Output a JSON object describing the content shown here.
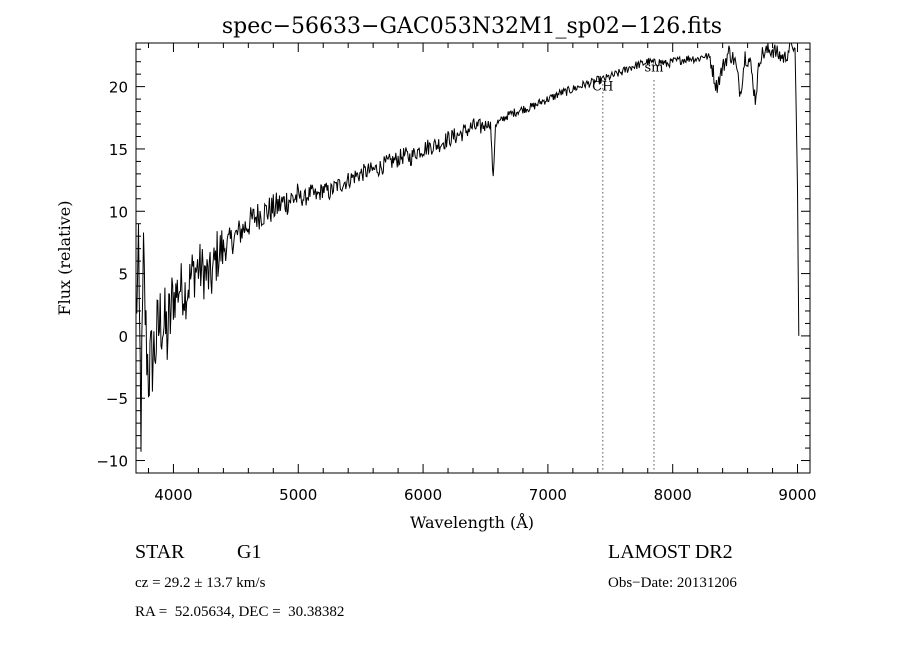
{
  "chart_data": {
    "type": "line",
    "title": "spec−56633−GAC053N32M1_sp02−126.fits",
    "xlabel": "Wavelength (Å)",
    "ylabel": "Flux (relative)",
    "xlim": [
      3700,
      9100
    ],
    "ylim": [
      -11,
      23.5
    ],
    "xticks": [
      4000,
      5000,
      6000,
      7000,
      8000,
      9000
    ],
    "yticks": [
      -10,
      -5,
      0,
      5,
      10,
      15,
      20
    ],
    "ytick_labels": [
      "−10",
      "−5",
      "0",
      "5",
      "10",
      "15",
      "20"
    ],
    "grid": false,
    "series": [
      {
        "x": [
          3700,
          3720,
          3740,
          3760,
          3780,
          3800,
          3850,
          3900,
          3950,
          4000,
          4050,
          4100,
          4150,
          4200,
          4250,
          4300,
          4350,
          4400,
          4450,
          4500,
          4550,
          4600,
          4650,
          4700,
          4750,
          4800,
          4850,
          4900,
          4950,
          5000,
          5050,
          5100,
          5150,
          5200,
          5250,
          5300,
          5350,
          5400,
          5450,
          5500,
          5550,
          5600,
          5650,
          5700,
          5750,
          5800,
          5850,
          5900,
          5950,
          6000,
          6050,
          6100,
          6150,
          6200,
          6250,
          6300,
          6350,
          6400,
          6450,
          6500,
          6540,
          6562,
          6580,
          6620,
          6650,
          6700,
          6750,
          6800,
          6850,
          6900,
          6950,
          7000,
          7050,
          7100,
          7150,
          7200,
          7250,
          7300,
          7350,
          7400,
          7450,
          7500,
          7550,
          7600,
          7650,
          7700,
          7750,
          7800,
          7850,
          7900,
          7950,
          8000,
          8050,
          8100,
          8150,
          8200,
          8250,
          8300,
          8350,
          8400,
          8450,
          8500,
          8542,
          8580,
          8620,
          8662,
          8700,
          8750,
          8800,
          8850,
          8900,
          8950,
          8980,
          9000,
          9010
        ],
        "y": [
          2,
          5.5,
          -7,
          6,
          0,
          -3,
          -1,
          1.5,
          0,
          3,
          4,
          3.5,
          5,
          5.5,
          5,
          4.5,
          6.5,
          7,
          7.5,
          8,
          8.5,
          9,
          9.5,
          9.8,
          10,
          10.2,
          10.5,
          10.8,
          11,
          11.2,
          11,
          11.5,
          11.2,
          11.8,
          11.5,
          12,
          12.2,
          12.5,
          12.8,
          13,
          13.2,
          13.3,
          13.5,
          13.8,
          14,
          14.2,
          14.5,
          14.3,
          14.8,
          15,
          15.2,
          15.3,
          15.5,
          15.8,
          16,
          16.2,
          16.5,
          16.8,
          16.7,
          17,
          17,
          12.5,
          17,
          17.2,
          17.5,
          17.8,
          18,
          18.2,
          18.3,
          18.5,
          18.8,
          19,
          19.2,
          19.5,
          19.6,
          19.8,
          20,
          20.2,
          20.3,
          20.5,
          20.6,
          20.8,
          21,
          21.2,
          21.5,
          21.7,
          21.8,
          22,
          21.9,
          22,
          21.8,
          22,
          22.1,
          22.2,
          22.3,
          22.2,
          22.5,
          22.3,
          20,
          21.5,
          22.8,
          22,
          19.5,
          22.5,
          22,
          19,
          22.5,
          22.8,
          23,
          22.5,
          22.3,
          23.5,
          22.8,
          12,
          0
        ]
      }
    ],
    "annotations": [
      {
        "x": 7440,
        "label": "CH"
      },
      {
        "x": 7850,
        "label": "sm"
      }
    ]
  },
  "info": {
    "object_type": "STAR",
    "subclass": "G1",
    "survey": "LAMOST DR2",
    "cz": "cz = 29.2 ± 13.7 km/s",
    "obs_date": "Obs−Date: 20131206",
    "coords": "RA =  52.05634, DEC =  30.38382"
  }
}
